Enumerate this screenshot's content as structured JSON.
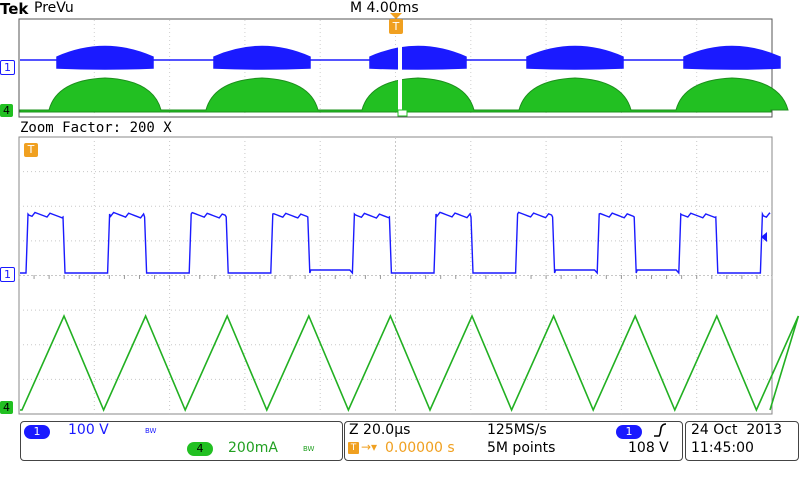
{
  "header": {
    "brand": "Tek",
    "mode": "PreVu",
    "timebase": "M 4.00ms",
    "trigger_marker": "T"
  },
  "zoom": {
    "label": "Zoom Factor: 200 X",
    "trigger_marker": "T"
  },
  "markers": {
    "ch1": "1",
    "ch4": "4"
  },
  "ch1": {
    "badge": "1",
    "scale": "100 V",
    "bw": "BW",
    "color": "#1a1aff"
  },
  "ch4": {
    "badge": "4",
    "scale": "200mA",
    "bw": "BW",
    "color": "#22c022"
  },
  "horizontal": {
    "zoom_scale": "Z 20.0µs",
    "position": "0.00000 s",
    "sample_rate": "125MS/s",
    "record_length": "5M points"
  },
  "trigger": {
    "source": "1",
    "slope_icon": "rising-edge-icon",
    "level": "108 V"
  },
  "datetime": {
    "date": "24 Oct  2013",
    "time": "11:45:00"
  },
  "colors": {
    "blue": "#1a1aff",
    "green": "#22c022",
    "trigger_orange": "#f0a020",
    "grid": "#bbbbbb"
  }
}
